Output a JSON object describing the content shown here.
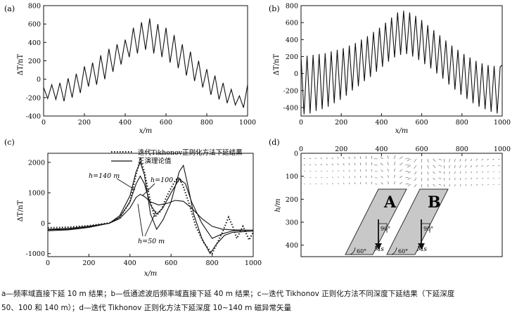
{
  "panels": {
    "a": {
      "label": "(a)",
      "xlabel": "x/m",
      "ylabel": "ΔT/nT",
      "xticks": [
        "0",
        "200",
        "400",
        "600",
        "800",
        "1000"
      ],
      "yticks": [
        "-400",
        "-200",
        "0",
        "200",
        "400",
        "600",
        "800"
      ]
    },
    "b": {
      "label": "(b)",
      "xlabel": "x/m",
      "ylabel": "ΔT/nT",
      "xticks": [
        "0",
        "200",
        "400",
        "600",
        "800",
        "1000"
      ],
      "yticks": [
        "-400",
        "-200",
        "0",
        "200",
        "400",
        "600",
        "800"
      ]
    },
    "c": {
      "label": "(c)",
      "xlabel": "x/m",
      "ylabel": "ΔT/nT",
      "xticks": [
        "0",
        "200",
        "400",
        "600",
        "800",
        "1000"
      ],
      "yticks": [
        "-1000",
        "0",
        "1000",
        "2000"
      ],
      "legend_dotted": "迭代Tikhonov正则化方法下延结果",
      "legend_solid": "正演理论值",
      "ann_140": "h=140 m",
      "ann_100": "h=100 m",
      "ann_50": "h=50 m"
    },
    "d": {
      "label": "(d)",
      "ylabel": "h/m",
      "xticks": [
        "0",
        "200",
        "400",
        "600",
        "800",
        "1000"
      ],
      "yticks": [
        "0",
        "100",
        "200",
        "300",
        "400"
      ],
      "body_a": "A",
      "body_b": "B",
      "angle_60": "60°",
      "angle_90": "90°",
      "ms": "Ms"
    }
  },
  "chart_data": [
    {
      "panel": "a",
      "type": "line",
      "title": "",
      "xlabel": "x/m",
      "ylabel": "ΔT/nT",
      "xlim": [
        0,
        1000
      ],
      "ylim": [
        -400,
        800
      ],
      "series": [
        {
          "x": [
            0,
            20,
            40,
            60,
            80,
            100,
            120,
            140,
            160,
            180,
            200,
            220,
            240,
            260,
            280,
            300,
            320,
            340,
            360,
            380,
            400,
            420,
            440,
            460,
            480,
            500,
            520,
            540,
            560,
            580,
            600,
            620,
            640,
            660,
            680,
            700,
            720,
            740,
            760,
            780,
            800,
            820,
            840,
            860,
            880,
            900,
            920,
            940,
            960,
            980,
            1000
          ],
          "values": [
            -90,
            -210,
            -60,
            -220,
            -40,
            -240,
            10,
            -200,
            60,
            -150,
            140,
            -80,
            180,
            -60,
            260,
            0,
            330,
            80,
            380,
            160,
            430,
            240,
            560,
            280,
            620,
            320,
            660,
            280,
            600,
            240,
            560,
            180,
            480,
            120,
            380,
            40,
            300,
            -20,
            200,
            -90,
            110,
            -170,
            40,
            -220,
            -40,
            -260,
            -110,
            -280,
            -180,
            -310,
            -60
          ]
        }
      ]
    },
    {
      "panel": "b",
      "type": "line",
      "title": "",
      "xlabel": "x/m",
      "ylabel": "ΔT/nT",
      "xlim": [
        0,
        1000
      ],
      "ylim": [
        -500,
        800
      ],
      "series": [
        {
          "x": [
            0,
            15,
            30,
            45,
            60,
            75,
            90,
            105,
            120,
            135,
            150,
            165,
            180,
            195,
            210,
            225,
            240,
            255,
            270,
            285,
            300,
            315,
            330,
            345,
            360,
            375,
            390,
            405,
            420,
            435,
            450,
            465,
            480,
            495,
            510,
            525,
            540,
            555,
            570,
            585,
            600,
            615,
            630,
            645,
            660,
            675,
            690,
            705,
            720,
            735,
            750,
            765,
            780,
            795,
            810,
            825,
            840,
            855,
            870,
            885,
            900,
            915,
            930,
            945,
            960,
            975,
            990,
            1000
          ],
          "values": [
            200,
            -480,
            210,
            -470,
            220,
            -440,
            230,
            -420,
            240,
            -390,
            260,
            -350,
            280,
            -310,
            300,
            -260,
            330,
            -200,
            360,
            -150,
            400,
            -90,
            440,
            -40,
            490,
            20,
            540,
            80,
            600,
            140,
            660,
            190,
            720,
            220,
            740,
            230,
            720,
            200,
            680,
            160,
            630,
            110,
            570,
            60,
            510,
            0,
            450,
            -60,
            390,
            -130,
            330,
            -190,
            280,
            -250,
            230,
            -300,
            190,
            -350,
            150,
            -390,
            120,
            -420,
            100,
            -450,
            90,
            -470,
            80,
            100
          ]
        }
      ]
    },
    {
      "panel": "c",
      "type": "line",
      "title": "",
      "xlabel": "x/m",
      "ylabel": "ΔT/nT",
      "xlim": [
        0,
        1000
      ],
      "ylim": [
        -1100,
        2300
      ],
      "series": [
        {
          "name": "迭代Tikhonov正则化方法下延结果",
          "style": "dotted",
          "x": [
            0,
            100,
            200,
            300,
            350,
            400,
            430,
            450,
            470,
            500,
            520,
            550,
            580,
            620,
            640,
            660,
            690,
            720,
            760,
            800,
            850,
            880,
            900,
            920,
            950,
            980,
            1000
          ],
          "values": [
            -150,
            -130,
            -80,
            10,
            180,
            700,
            1600,
            2100,
            1700,
            700,
            200,
            400,
            900,
            1400,
            1500,
            1200,
            600,
            -100,
            -650,
            -1000,
            -300,
            200,
            -100,
            -500,
            -100,
            -550,
            -300
          ]
        },
        {
          "name": "正演理论值 h=140 m",
          "style": "solid",
          "x": [
            0,
            100,
            200,
            300,
            350,
            400,
            430,
            450,
            470,
            500,
            540,
            580,
            620,
            660,
            700,
            750,
            800,
            850,
            900,
            1000
          ],
          "values": [
            -200,
            -170,
            -100,
            0,
            150,
            500,
            850,
            950,
            880,
            700,
            600,
            650,
            750,
            720,
            500,
            150,
            -100,
            -200,
            -220,
            -230
          ]
        },
        {
          "name": "正演理论值 h=100 m",
          "style": "solid",
          "x": [
            0,
            100,
            200,
            300,
            350,
            400,
            430,
            450,
            470,
            500,
            530,
            560,
            600,
            640,
            670,
            700,
            750,
            800,
            850,
            900,
            1000
          ],
          "values": [
            -220,
            -200,
            -120,
            0,
            200,
            700,
            1300,
            1550,
            1300,
            600,
            300,
            500,
            1000,
            1450,
            1300,
            700,
            0,
            -500,
            -350,
            -250,
            -230
          ]
        },
        {
          "name": "正演理论值 h=50 m",
          "style": "solid",
          "x": [
            0,
            100,
            200,
            300,
            350,
            400,
            430,
            450,
            470,
            500,
            530,
            560,
            600,
            640,
            660,
            680,
            710,
            750,
            790,
            820,
            860,
            900,
            1000
          ],
          "values": [
            -250,
            -220,
            -140,
            0,
            250,
            900,
            1700,
            2000,
            1600,
            300,
            -200,
            100,
            700,
            1700,
            1900,
            1300,
            300,
            -500,
            -1000,
            -700,
            -400,
            -300,
            -260
          ]
        }
      ]
    },
    {
      "panel": "d",
      "type": "scatter",
      "title": "",
      "xlabel": "",
      "ylabel": "h/m",
      "xlim": [
        0,
        1000
      ],
      "ylim": [
        450,
        0
      ],
      "note": "magnetic anomaly vector field (arrows) over two dipping bodies A and B"
    }
  ]
}
